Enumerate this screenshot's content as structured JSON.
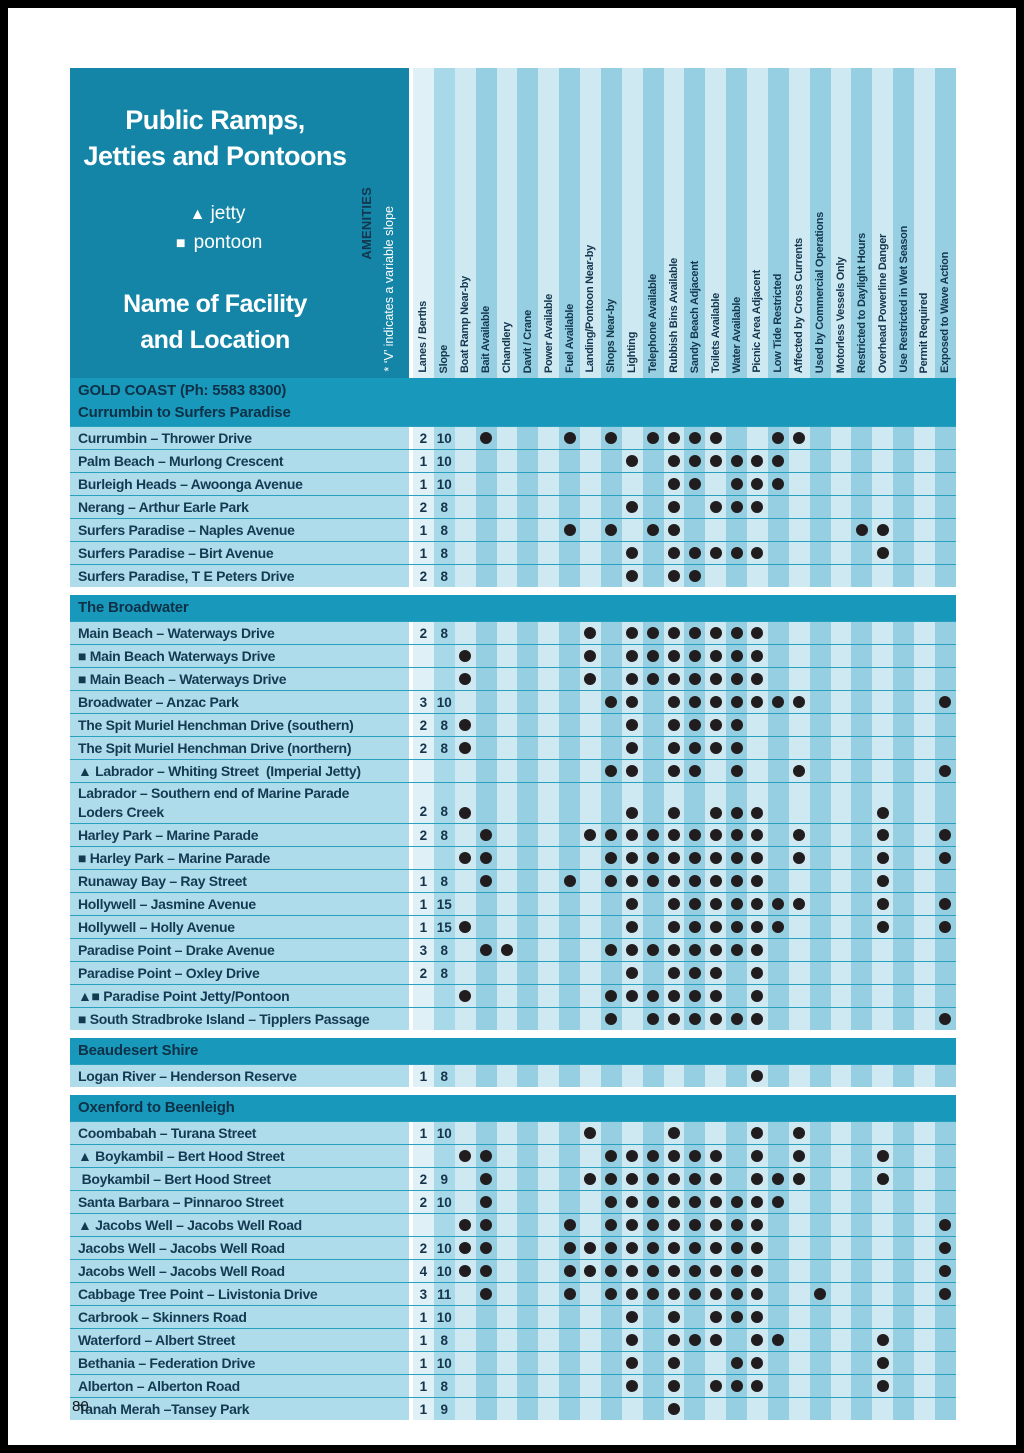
{
  "page": {
    "number": "80"
  },
  "header": {
    "title_line1": "Public Ramps,",
    "title_line2": "Jetties and Pontoons",
    "legend": [
      {
        "symbol": "▲",
        "label": "jetty"
      },
      {
        "symbol": "■",
        "label": "pontoon"
      }
    ],
    "subtitle_line1": "Name of Facility",
    "subtitle_line2": "and Location",
    "amenities_label": "AMENITIES",
    "slope_note": "* ‘V’ indicates a variable slope"
  },
  "columns": {
    "lanes": "Lanes / Berths",
    "slope": "Slope",
    "amenities": [
      "Boat Ramp Near-by",
      "Bait Available",
      "Chandlery",
      "Davit / Crane",
      "Power Available",
      "Fuel Available",
      "Landing/Pontoon Near-by",
      "Shops Near-by",
      "Lighting",
      "Telephone Available",
      "Rubbish Bins Available",
      "Sandy Beach Adjacent",
      "Toilets Available",
      "Water Available",
      "Picnic Area Adjacent",
      "Low Tide Restricted",
      "Affected by Cross Currents",
      "Used by Commercial Operations",
      "Motorless Vessels Only",
      "Restricted to Daylight Hours",
      "Overhead Powerline Danger",
      "Use Restricted in Wet Season",
      "Permit Required",
      "Exposed to Wave Action"
    ]
  },
  "sections": [
    {
      "title_lines": [
        "GOLD COAST (Ph: 5583 8300)",
        "Currumbin to Surfers Paradise"
      ],
      "rows": [
        {
          "name": "Currumbin – Thrower Drive",
          "lanes": "2",
          "slope": "10",
          "dots": [
            1,
            5,
            7,
            9,
            10,
            11,
            12,
            15,
            16
          ]
        },
        {
          "name": "Palm Beach – Murlong Crescent",
          "lanes": "1",
          "slope": "10",
          "dots": [
            8,
            10,
            11,
            12,
            13,
            14,
            15
          ]
        },
        {
          "name": "Burleigh Heads – Awoonga Avenue",
          "lanes": "1",
          "slope": "10",
          "dots": [
            10,
            11,
            13,
            14,
            15
          ]
        },
        {
          "name": "Nerang – Arthur Earle Park",
          "lanes": "2",
          "slope": "8",
          "dots": [
            8,
            10,
            12,
            13,
            14
          ]
        },
        {
          "name": "Surfers Paradise – Naples Avenue",
          "lanes": "1",
          "slope": "8",
          "dots": [
            5,
            7,
            9,
            10,
            19,
            20
          ]
        },
        {
          "name": "Surfers Paradise – Birt Avenue",
          "lanes": "1",
          "slope": "8",
          "dots": [
            8,
            10,
            11,
            12,
            13,
            14,
            20
          ]
        },
        {
          "name": "Surfers Paradise, T E Peters Drive",
          "lanes": "2",
          "slope": "8",
          "dots": [
            8,
            10,
            11
          ]
        }
      ]
    },
    {
      "title_lines": [
        "The Broadwater"
      ],
      "rows": [
        {
          "name": "Main Beach – Waterways Drive",
          "lanes": "2",
          "slope": "8",
          "dots": [
            6,
            8,
            9,
            10,
            11,
            12,
            13,
            14
          ]
        },
        {
          "name": "■ Main Beach Waterways Drive",
          "lanes": "",
          "slope": "",
          "dots": [
            0,
            6,
            8,
            9,
            10,
            11,
            12,
            13,
            14
          ]
        },
        {
          "name": "■ Main Beach – Waterways Drive",
          "lanes": "",
          "slope": "",
          "dots": [
            0,
            6,
            8,
            9,
            10,
            11,
            12,
            13,
            14
          ]
        },
        {
          "name": "Broadwater – Anzac Park",
          "lanes": "3",
          "slope": "10",
          "dots": [
            7,
            8,
            10,
            11,
            12,
            13,
            14,
            15,
            16,
            23
          ]
        },
        {
          "name": "The Spit Muriel Henchman Drive (southern)",
          "lanes": "2",
          "slope": "8",
          "dots": [
            0,
            8,
            10,
            11,
            12,
            13
          ]
        },
        {
          "name": "The Spit Muriel Henchman Drive (northern)",
          "lanes": "2",
          "slope": "8",
          "dots": [
            0,
            8,
            10,
            11,
            12,
            13
          ]
        },
        {
          "name": "▲ Labrador – Whiting Street  (Imperial Jetty)",
          "lanes": "",
          "slope": "",
          "dots": [
            7,
            8,
            10,
            11,
            13,
            16,
            23
          ]
        },
        {
          "name": "Labrador – Southern end of Marine Parade",
          "name_line2": "Loders Creek",
          "lanes": "2",
          "slope": "8",
          "dots": [
            0,
            8,
            10,
            12,
            13,
            14,
            20
          ],
          "tall": true
        },
        {
          "name": "Harley Park – Marine Parade",
          "lanes": "2",
          "slope": "8",
          "dots": [
            1,
            6,
            7,
            8,
            9,
            10,
            11,
            12,
            13,
            14,
            16,
            20,
            23
          ]
        },
        {
          "name": "■ Harley Park – Marine Parade",
          "lanes": "",
          "slope": "",
          "dots": [
            0,
            1,
            7,
            8,
            9,
            10,
            11,
            12,
            13,
            14,
            16,
            20,
            23
          ]
        },
        {
          "name": "Runaway Bay – Ray Street",
          "lanes": "1",
          "slope": "8",
          "dots": [
            1,
            5,
            7,
            8,
            9,
            10,
            11,
            12,
            13,
            14,
            20
          ]
        },
        {
          "name": "Hollywell – Jasmine Avenue",
          "lanes": "1",
          "slope": "15",
          "dots": [
            8,
            10,
            11,
            12,
            13,
            14,
            15,
            16,
            20,
            23
          ]
        },
        {
          "name": "Hollywell – Holly Avenue",
          "lanes": "1",
          "slope": "15",
          "dots": [
            0,
            8,
            10,
            11,
            12,
            13,
            14,
            15,
            20,
            23
          ]
        },
        {
          "name": "Paradise Point – Drake Avenue",
          "lanes": "3",
          "slope": "8",
          "dots": [
            1,
            2,
            7,
            8,
            9,
            10,
            11,
            12,
            13,
            14
          ]
        },
        {
          "name": "Paradise Point – Oxley Drive",
          "lanes": "2",
          "slope": "8",
          "dots": [
            8,
            10,
            11,
            12,
            14
          ]
        },
        {
          "name": "▲■ Paradise Point Jetty/Pontoon",
          "lanes": "",
          "slope": "",
          "dots": [
            0,
            7,
            8,
            9,
            10,
            11,
            12,
            14
          ]
        },
        {
          "name": "■ South Stradbroke Island – Tipplers Passage",
          "lanes": "",
          "slope": "",
          "dots": [
            7,
            9,
            10,
            11,
            12,
            13,
            14,
            23
          ]
        }
      ]
    },
    {
      "title_lines": [
        "Beaudesert Shire"
      ],
      "rows": [
        {
          "name": "Logan River – Henderson Reserve",
          "lanes": "1",
          "slope": "8",
          "dots": [
            14
          ]
        }
      ]
    },
    {
      "title_lines": [
        "Oxenford to Beenleigh"
      ],
      "rows": [
        {
          "name": "Coombabah – Turana Street",
          "lanes": "1",
          "slope": "10",
          "dots": [
            6,
            10,
            14,
            16
          ]
        },
        {
          "name": "▲ Boykambil – Bert Hood Street",
          "lanes": "",
          "slope": "",
          "dots": [
            0,
            1,
            7,
            8,
            9,
            10,
            11,
            12,
            14,
            16,
            20
          ]
        },
        {
          "name": " Boykambil – Bert Hood Street",
          "lanes": "2",
          "slope": "9",
          "dots": [
            1,
            6,
            7,
            8,
            9,
            10,
            11,
            12,
            14,
            15,
            16,
            20
          ]
        },
        {
          "name": "Santa Barbara – Pinnaroo Street",
          "lanes": "2",
          "slope": "10",
          "dots": [
            1,
            7,
            8,
            9,
            10,
            11,
            12,
            13,
            14,
            15
          ]
        },
        {
          "name": "▲ Jacobs Well – Jacobs Well Road",
          "lanes": "",
          "slope": "",
          "dots": [
            0,
            1,
            5,
            7,
            8,
            9,
            10,
            11,
            12,
            13,
            14,
            23
          ]
        },
        {
          "name": "Jacobs Well – Jacobs Well Road",
          "lanes": "2",
          "slope": "10",
          "dots": [
            0,
            1,
            5,
            6,
            7,
            8,
            9,
            10,
            11,
            12,
            13,
            14,
            23
          ]
        },
        {
          "name": "Jacobs Well – Jacobs Well Road",
          "lanes": "4",
          "slope": "10",
          "dots": [
            0,
            1,
            5,
            6,
            7,
            8,
            9,
            10,
            11,
            12,
            13,
            14,
            23
          ]
        },
        {
          "name": "Cabbage Tree Point – Livistonia Drive",
          "lanes": "3",
          "slope": "11",
          "dots": [
            1,
            5,
            7,
            8,
            9,
            10,
            11,
            12,
            13,
            14,
            17,
            23
          ]
        },
        {
          "name": "Carbrook – Skinners Road",
          "lanes": "1",
          "slope": "10",
          "dots": [
            8,
            10,
            12,
            13,
            14
          ]
        },
        {
          "name": "Waterford – Albert Street",
          "lanes": "1",
          "slope": "8",
          "dots": [
            8,
            10,
            11,
            12,
            14,
            15,
            20
          ]
        },
        {
          "name": "Bethania – Federation Drive",
          "lanes": "1",
          "slope": "10",
          "dots": [
            8,
            10,
            13,
            14,
            20
          ]
        },
        {
          "name": "Alberton – Alberton Road",
          "lanes": "1",
          "slope": "8",
          "dots": [
            8,
            10,
            12,
            13,
            14,
            20
          ]
        },
        {
          "name": "Tanah Merah –Tansey Park",
          "lanes": "1",
          "slope": "9",
          "dots": [
            10
          ]
        }
      ]
    }
  ],
  "colors": {
    "teal_header": "#1485a6",
    "teal_band": "#1899bb",
    "stripe_light": "#cfe9f2",
    "stripe_dark": "#95cfe1",
    "name_row_bg": "#aedceb",
    "navy_text": "#143a52",
    "dot": "#211d1e",
    "separator": "#2aa0bf",
    "page_bg": "#ffffff",
    "frame": "#000000"
  }
}
